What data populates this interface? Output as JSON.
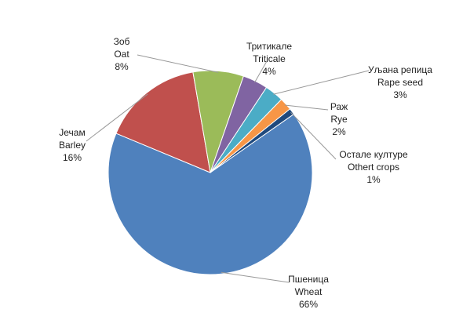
{
  "chart_data": {
    "type": "pie",
    "categories": [
      "Пшеница",
      "Јечам",
      "Зоб",
      "Тритикале",
      "Уљана репица",
      "Раж",
      "Остале културе"
    ],
    "categories_en": [
      "Wheat",
      "Barley",
      "Oat",
      "Triticale",
      "Rape seed",
      "Rye",
      "Othert crops"
    ],
    "values": [
      66,
      16,
      8,
      4,
      3,
      2,
      1
    ],
    "value_labels": [
      "66%",
      "16%",
      "8%",
      "4%",
      "3%",
      "2%",
      "1%"
    ],
    "colors": [
      "#4f81bd",
      "#c0504d",
      "#9bbb59",
      "#8064a2",
      "#4bacc6",
      "#f79646",
      "#1f497d"
    ]
  }
}
